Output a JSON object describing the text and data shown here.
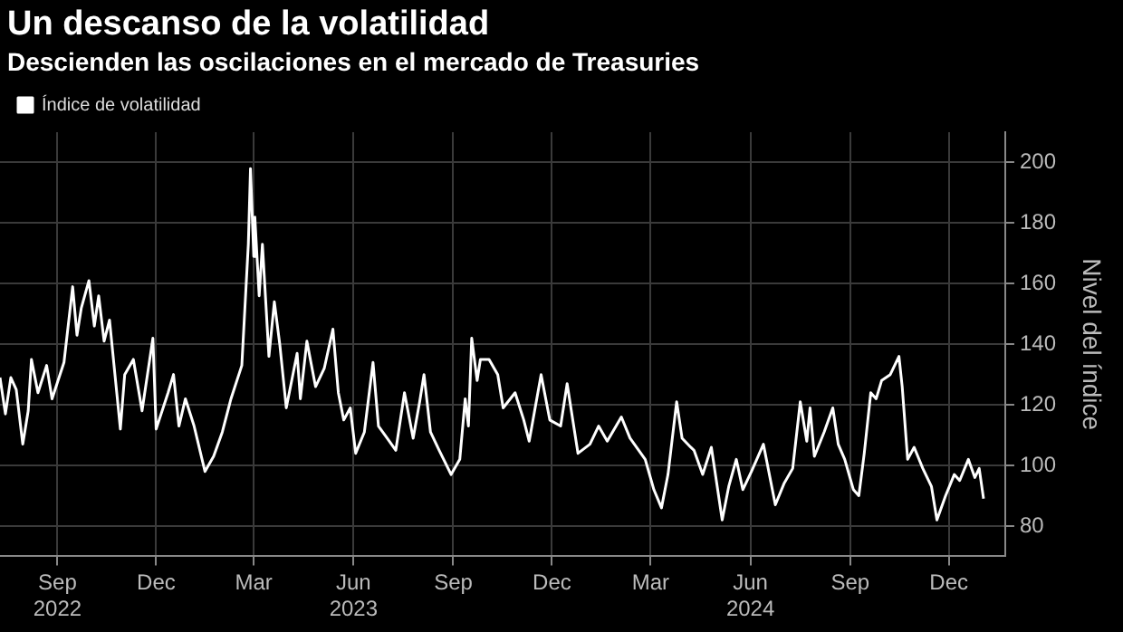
{
  "chart_data": {
    "type": "line",
    "title": "Un descanso de la volatilidad",
    "subtitle": "Descienden las oscilaciones en el mercado de Treasuries",
    "ylabel": "Nivel del índice",
    "x": [
      "2022-07-24",
      "2022-07-29",
      "2022-08-03",
      "2022-08-08",
      "2022-08-14",
      "2022-08-19",
      "2022-08-22",
      "2022-08-28",
      "2022-09-05",
      "2022-09-10",
      "2022-09-21",
      "2022-09-29",
      "2022-10-03",
      "2022-10-07",
      "2022-10-14",
      "2022-10-19",
      "2022-10-23",
      "2022-10-28",
      "2022-11-02",
      "2022-11-07",
      "2022-11-12",
      "2022-11-16",
      "2022-11-24",
      "2022-12-02",
      "2022-12-12",
      "2022-12-15",
      "2022-12-26",
      "2022-12-31",
      "2023-01-05",
      "2023-01-11",
      "2023-01-19",
      "2023-01-29",
      "2023-02-06",
      "2023-02-14",
      "2023-02-22",
      "2023-03-04",
      "2023-03-10",
      "2023-03-12",
      "2023-03-15",
      "2023-03-16",
      "2023-03-20",
      "2023-03-23",
      "2023-03-29",
      "2023-04-03",
      "2023-04-08",
      "2023-04-14",
      "2023-04-24",
      "2023-04-27",
      "2023-05-03",
      "2023-05-11",
      "2023-05-19",
      "2023-05-27",
      "2023-06-01",
      "2023-06-06",
      "2023-06-12",
      "2023-06-17",
      "2023-06-25",
      "2023-07-03",
      "2023-07-08",
      "2023-07-16",
      "2023-07-24",
      "2023-08-01",
      "2023-08-09",
      "2023-08-15",
      "2023-08-19",
      "2023-08-25",
      "2023-09-02",
      "2023-09-13",
      "2023-09-21",
      "2023-09-26",
      "2023-09-29",
      "2023-10-02",
      "2023-10-07",
      "2023-10-10",
      "2023-10-18",
      "2023-10-26",
      "2023-10-31",
      "2023-11-11",
      "2023-11-19",
      "2023-11-24",
      "2023-12-05",
      "2023-12-13",
      "2023-12-23",
      "2023-12-29",
      "2024-01-08",
      "2024-01-19",
      "2024-01-27",
      "2024-02-04",
      "2024-02-17",
      "2024-02-25",
      "2024-03-10",
      "2024-03-18",
      "2024-03-25",
      "2024-03-31",
      "2024-04-08",
      "2024-04-13",
      "2024-04-21",
      "2024-04-24",
      "2024-05-02",
      "2024-05-10",
      "2024-05-20",
      "2024-05-26",
      "2024-06-02",
      "2024-06-08",
      "2024-06-16",
      "2024-06-27",
      "2024-07-08",
      "2024-07-16",
      "2024-07-24",
      "2024-07-31",
      "2024-08-06",
      "2024-08-09",
      "2024-08-13",
      "2024-08-22",
      "2024-08-30",
      "2024-09-04",
      "2024-09-10",
      "2024-09-18",
      "2024-09-23",
      "2024-09-28",
      "2024-10-04",
      "2024-10-09",
      "2024-10-14",
      "2024-10-22",
      "2024-10-30",
      "2024-11-02",
      "2024-11-07",
      "2024-11-13",
      "2024-11-21",
      "2024-11-29",
      "2024-12-04",
      "2024-12-12",
      "2024-12-20",
      "2024-12-25",
      "2025-01-02",
      "2025-01-08",
      "2025-01-12",
      "2025-01-16"
    ],
    "series": [
      {
        "name": "Índice de volatilidad",
        "color": "#ffffff",
        "values": [
          129,
          117,
          129,
          125,
          107,
          118,
          135,
          124,
          133,
          122,
          134,
          159,
          143,
          152,
          161,
          146,
          156,
          141,
          148,
          130,
          112,
          130,
          135,
          118,
          142,
          112,
          124,
          130,
          113,
          122,
          113,
          98,
          103,
          111,
          122,
          133,
          173,
          198,
          169,
          182,
          156,
          173,
          136,
          154,
          140,
          119,
          137,
          122,
          141,
          126,
          132,
          145,
          124,
          115,
          119,
          104,
          111,
          134,
          113,
          109,
          105,
          124,
          109,
          121,
          130,
          111,
          105,
          97,
          102,
          122,
          113,
          142,
          128,
          135,
          135,
          130,
          119,
          124,
          115,
          108,
          130,
          115,
          113,
          127,
          104,
          107,
          113,
          108,
          116,
          109,
          102,
          92,
          86,
          97,
          121,
          109,
          106,
          105,
          97,
          106,
          82,
          93,
          102,
          92,
          98,
          107,
          87,
          94,
          99,
          121,
          108,
          119,
          103,
          111,
          119,
          107,
          102,
          92,
          90,
          104,
          124,
          122,
          128,
          130,
          136,
          126,
          102,
          106,
          99,
          93,
          82,
          90,
          97,
          95,
          102,
          96,
          99,
          89
        ]
      }
    ],
    "xlim": [
      "2022-07-24",
      "2025-02-05"
    ],
    "xticks": [
      {
        "value": "2022-09-15",
        "label": "Sep\n2022"
      },
      {
        "value": "2022-12-15",
        "label": "Dec"
      },
      {
        "value": "2023-03-15",
        "label": "Mar"
      },
      {
        "value": "2023-06-15",
        "label": "Jun\n2023"
      },
      {
        "value": "2023-09-15",
        "label": "Sep"
      },
      {
        "value": "2023-12-15",
        "label": "Dec"
      },
      {
        "value": "2024-03-15",
        "label": "Mar"
      },
      {
        "value": "2024-06-15",
        "label": "Jun\n2024"
      },
      {
        "value": "2024-09-15",
        "label": "Sep"
      },
      {
        "value": "2024-12-15",
        "label": "Dec"
      }
    ],
    "ylim": [
      70,
      210
    ],
    "yticks": [
      80,
      100,
      120,
      140,
      160,
      180,
      200
    ],
    "grid": true,
    "legend": "top left",
    "marker": "none",
    "line_style": "solid"
  }
}
